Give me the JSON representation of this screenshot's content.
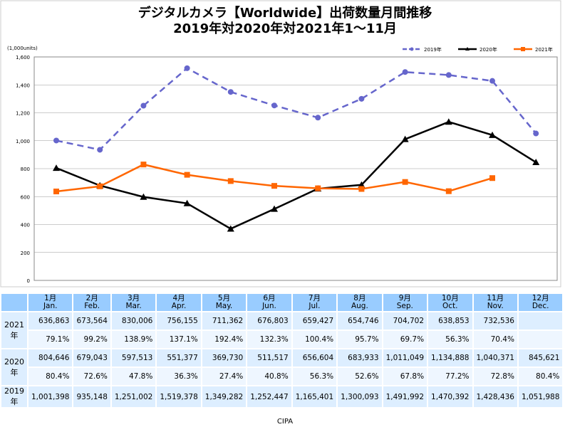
{
  "chart_data": {
    "type": "line",
    "title": "デジタルカメラ【Worldwide】出荷数量月間推移",
    "subtitle": "2019年対2020年対2021年1～11月",
    "unit_label": "(1,000units)",
    "ylim": [
      0,
      1600
    ],
    "yticks": [
      "0",
      "200",
      "400",
      "600",
      "800",
      "1,000",
      "1,200",
      "1,400",
      "1,600"
    ],
    "grid": true,
    "legend_position": "top-right",
    "categories": [
      "1月",
      "2月",
      "3月",
      "4月",
      "5月",
      "6月",
      "7月",
      "8月",
      "9月",
      "10月",
      "11月",
      "12月"
    ],
    "series": [
      {
        "name": "2019年",
        "color": "#6666cc",
        "style": "dashed",
        "marker": "circle",
        "values": [
          1001.398,
          935.148,
          1251.002,
          1519.378,
          1349.282,
          1252.447,
          1165.401,
          1300.093,
          1491.992,
          1470.392,
          1428.436,
          1051.988
        ]
      },
      {
        "name": "2020年",
        "color": "#000000",
        "style": "solid",
        "marker": "triangle",
        "values": [
          804.646,
          679.043,
          597.513,
          551.377,
          369.73,
          511.517,
          656.604,
          683.933,
          1011.049,
          1134.888,
          1040.371,
          845.621
        ]
      },
      {
        "name": "2021年",
        "color": "#ff6600",
        "style": "solid",
        "marker": "square",
        "values": [
          636.863,
          673.564,
          830.006,
          756.155,
          711.362,
          676.803,
          659.427,
          654.746,
          704.702,
          638.853,
          732.536,
          null
        ]
      }
    ]
  },
  "table": {
    "months": [
      [
        "1月",
        "Jan."
      ],
      [
        "2月",
        "Feb."
      ],
      [
        "3月",
        "Mar."
      ],
      [
        "4月",
        "Apr."
      ],
      [
        "5月",
        "May."
      ],
      [
        "6月",
        "Jun."
      ],
      [
        "7月",
        "Jul."
      ],
      [
        "8月",
        "Aug."
      ],
      [
        "9月",
        "Sep."
      ],
      [
        "10月",
        "Oct."
      ],
      [
        "11月",
        "Nov."
      ],
      [
        "12月",
        "Dec."
      ]
    ],
    "rows": [
      {
        "label": "2021年",
        "values": [
          "636,863",
          "673,564",
          "830,006",
          "756,155",
          "711,362",
          "676,803",
          "659,427",
          "654,746",
          "704,702",
          "638,853",
          "732,536",
          ""
        ],
        "ratios": [
          "79.1%",
          "99.2%",
          "138.9%",
          "137.1%",
          "192.4%",
          "132.3%",
          "100.4%",
          "95.7%",
          "69.7%",
          "56.3%",
          "70.4%",
          ""
        ]
      },
      {
        "label": "2020年",
        "values": [
          "804,646",
          "679,043",
          "597,513",
          "551,377",
          "369,730",
          "511,517",
          "656,604",
          "683,933",
          "1,011,049",
          "1,134,888",
          "1,040,371",
          "845,621"
        ],
        "ratios": [
          "80.4%",
          "72.6%",
          "47.8%",
          "36.3%",
          "27.4%",
          "40.8%",
          "56.3%",
          "52.6%",
          "67.8%",
          "77.2%",
          "72.8%",
          "80.4%"
        ]
      },
      {
        "label": "2019年",
        "values": [
          "1,001,398",
          "935,148",
          "1,251,002",
          "1,519,378",
          "1,349,282",
          "1,252,447",
          "1,165,401",
          "1,300,093",
          "1,491,992",
          "1,470,392",
          "1,428,436",
          "1,051,988"
        ]
      }
    ]
  },
  "source": "CIPA"
}
